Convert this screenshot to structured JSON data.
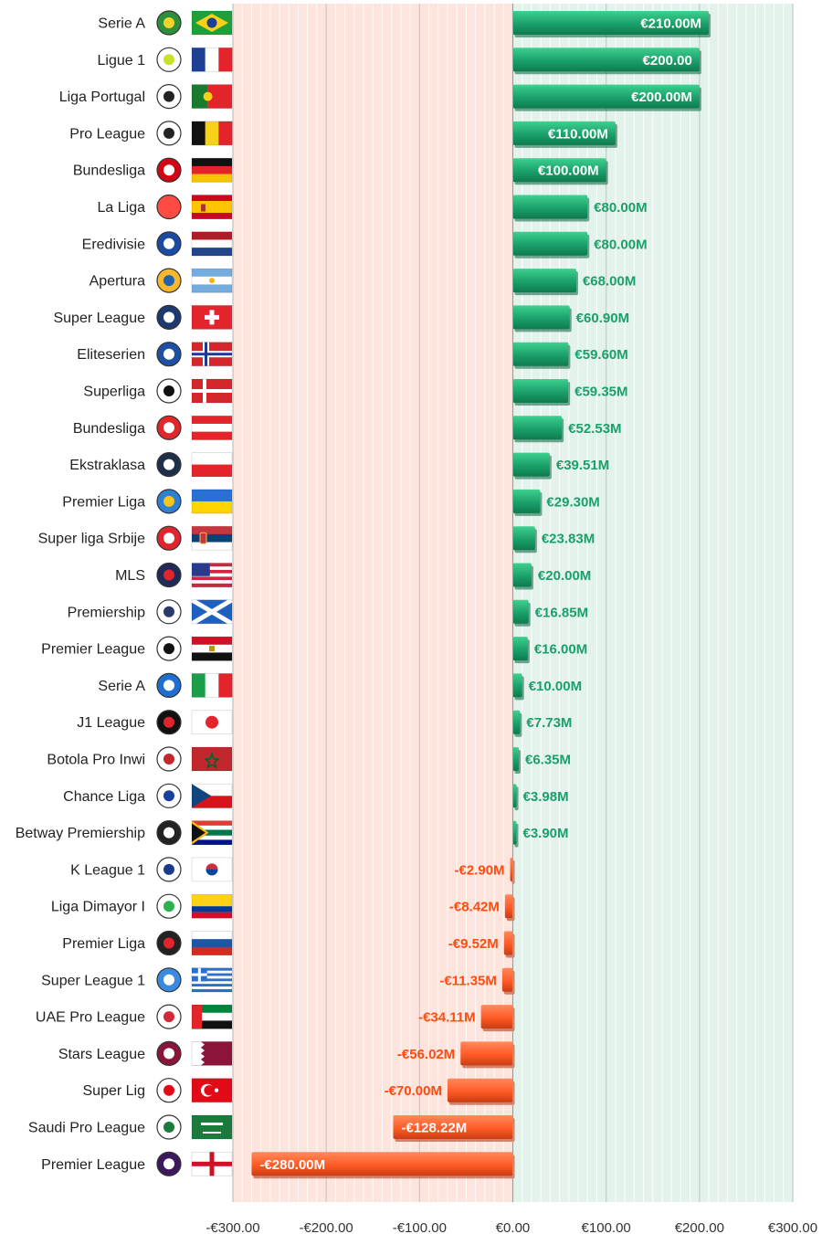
{
  "chart_data": {
    "type": "bar",
    "orientation": "horizontal",
    "title": "",
    "xlabel": "",
    "ylabel": "",
    "xlim": [
      -300,
      300
    ],
    "x_ticks": [
      -300,
      -200,
      -100,
      0,
      100,
      200,
      300
    ],
    "x_tick_labels": [
      "-€300.00",
      "-€200.00",
      "-€100.00",
      "€0.00",
      "€100.00",
      "€200.00",
      "€300.00"
    ],
    "grid": "vertical",
    "colors": {
      "positive": "#1aa06a",
      "positive_dark": "#0e7a4e",
      "positive_bg": "#e3f3ec",
      "negative": "#ff5a26",
      "negative_dark": "#c93d12",
      "negative_bg": "#fde4dc",
      "positive_text": "#1aa06a",
      "negative_text": "#ff4a10"
    },
    "categories": [
      {
        "league": "Serie A",
        "country": "Brazil",
        "logo": "serie-a-brazil-logo",
        "flag": "brazil-flag",
        "value": 210.0,
        "label": "€210.00M"
      },
      {
        "league": "Ligue 1",
        "country": "France",
        "logo": "ligue-1-logo",
        "flag": "france-flag",
        "value": 200.0,
        "label": "€200.00"
      },
      {
        "league": "Liga Portugal",
        "country": "Portugal",
        "logo": "liga-portugal-logo",
        "flag": "portugal-flag",
        "value": 200.0,
        "label": "€200.00M"
      },
      {
        "league": "Pro League",
        "country": "Belgium",
        "logo": "pro-league-logo",
        "flag": "belgium-flag",
        "value": 110.0,
        "label": "€110.00M"
      },
      {
        "league": "Bundesliga",
        "country": "Germany",
        "logo": "bundesliga-logo",
        "flag": "germany-flag",
        "value": 100.0,
        "label": "€100.00M"
      },
      {
        "league": "La Liga",
        "country": "Spain",
        "logo": "la-liga-logo",
        "flag": "spain-flag",
        "value": 80.0,
        "label": "€80.00M"
      },
      {
        "league": "Eredivisie",
        "country": "Netherlands",
        "logo": "eredivisie-logo",
        "flag": "netherlands-flag",
        "value": 80.0,
        "label": "€80.00M"
      },
      {
        "league": "Apertura",
        "country": "Argentina",
        "logo": "lpf-logo",
        "flag": "argentina-flag",
        "value": 68.0,
        "label": "€68.00M"
      },
      {
        "league": "Super League",
        "country": "Switzerland",
        "logo": "super-league-swiss-logo",
        "flag": "switzerland-flag",
        "value": 60.9,
        "label": "€60.90M"
      },
      {
        "league": "Eliteserien",
        "country": "Norway",
        "logo": "eliteserien-logo",
        "flag": "norway-flag",
        "value": 59.6,
        "label": "€59.60M"
      },
      {
        "league": "Superliga",
        "country": "Denmark",
        "logo": "superliga-logo",
        "flag": "denmark-flag",
        "value": 59.35,
        "label": "€59.35M"
      },
      {
        "league": "Bundesliga",
        "country": "Austria",
        "logo": "austrian-bundesliga-logo",
        "flag": "austria-flag",
        "value": 52.53,
        "label": "€52.53M"
      },
      {
        "league": "Ekstraklasa",
        "country": "Poland",
        "logo": "ekstraklasa-logo",
        "flag": "poland-flag",
        "value": 39.51,
        "label": "€39.51M"
      },
      {
        "league": "Premier Liga",
        "country": "Ukraine",
        "logo": "upl-logo",
        "flag": "ukraine-flag",
        "value": 29.3,
        "label": "€29.30M"
      },
      {
        "league": "Super liga Srbije",
        "country": "Serbia",
        "logo": "super-liga-srbije-logo",
        "flag": "serbia-flag",
        "value": 23.83,
        "label": "€23.83M"
      },
      {
        "league": "MLS",
        "country": "USA",
        "logo": "mls-logo",
        "flag": "usa-flag",
        "value": 20.0,
        "label": "€20.00M"
      },
      {
        "league": "Premiership",
        "country": "Scotland",
        "logo": "spfl-logo",
        "flag": "scotland-flag",
        "value": 16.85,
        "label": "€16.85M"
      },
      {
        "league": "Premier League",
        "country": "Egypt",
        "logo": "egyptian-premier-league-logo",
        "flag": "egypt-flag",
        "value": 16.0,
        "label": "€16.00M"
      },
      {
        "league": "Serie A",
        "country": "Italy",
        "logo": "serie-a-italy-logo",
        "flag": "italy-flag",
        "value": 10.0,
        "label": "€10.00M"
      },
      {
        "league": "J1 League",
        "country": "Japan",
        "logo": "j1-league-logo",
        "flag": "japan-flag",
        "value": 7.73,
        "label": "€7.73M"
      },
      {
        "league": "Botola Pro Inwi",
        "country": "Morocco",
        "logo": "botola-logo",
        "flag": "morocco-flag",
        "value": 6.35,
        "label": "€6.35M"
      },
      {
        "league": "Chance Liga",
        "country": "Czechia",
        "logo": "chance-liga-logo",
        "flag": "czech-flag",
        "value": 3.98,
        "label": "€3.98M"
      },
      {
        "league": "Betway Premiership",
        "country": "South Africa",
        "logo": "psl-logo",
        "flag": "south-africa-flag",
        "value": 3.9,
        "label": "€3.90M"
      },
      {
        "league": "K League 1",
        "country": "South Korea",
        "logo": "k-league-logo",
        "flag": "south-korea-flag",
        "value": -2.9,
        "label": "-€2.90M"
      },
      {
        "league": "Liga Dimayor I",
        "country": "Colombia",
        "logo": "liga-dimayor-logo",
        "flag": "colombia-flag",
        "value": -8.42,
        "label": "-€8.42M"
      },
      {
        "league": "Premier Liga",
        "country": "Russia",
        "logo": "rpl-logo",
        "flag": "russia-flag",
        "value": -9.52,
        "label": "-€9.52M"
      },
      {
        "league": "Super League 1",
        "country": "Greece",
        "logo": "super-league-greece-logo",
        "flag": "greece-flag",
        "value": -11.35,
        "label": "-€11.35M"
      },
      {
        "league": "UAE Pro League",
        "country": "UAE",
        "logo": "uae-pro-league-logo",
        "flag": "uae-flag",
        "value": -34.11,
        "label": "-€34.11M"
      },
      {
        "league": "Stars League",
        "country": "Qatar",
        "logo": "qsl-logo",
        "flag": "qatar-flag",
        "value": -56.02,
        "label": "-€56.02M"
      },
      {
        "league": "Super Lig",
        "country": "Turkey",
        "logo": "super-lig-logo",
        "flag": "turkey-flag",
        "value": -70.0,
        "label": "-€70.00M"
      },
      {
        "league": "Saudi Pro League",
        "country": "Saudi Arabia",
        "logo": "spl-logo",
        "flag": "saudi-arabia-flag",
        "value": -128.22,
        "label": "-€128.22M"
      },
      {
        "league": "Premier League",
        "country": "England",
        "logo": "premier-league-logo",
        "flag": "england-flag",
        "value": -280.0,
        "label": "-€280.00M"
      }
    ]
  }
}
